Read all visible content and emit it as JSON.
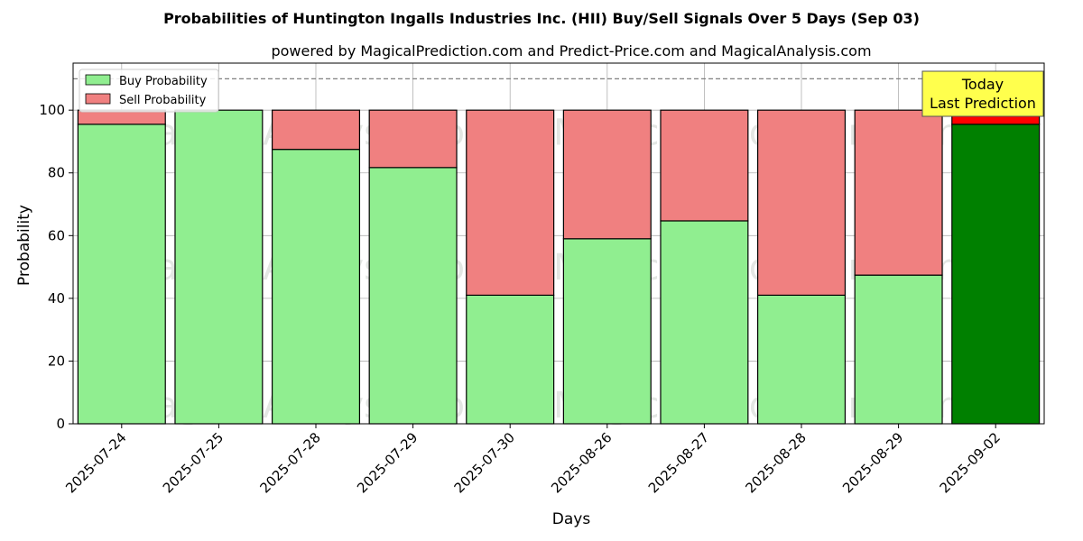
{
  "chart_data": {
    "type": "bar",
    "stacked": true,
    "title": "Probabilities of Huntington Ingalls Industries Inc. (HII) Buy/Sell Signals Over 5 Days (Sep 03)",
    "subtitle": "powered by MagicalPrediction.com and Predict-Price.com and MagicalAnalysis.com",
    "xlabel": "Days",
    "ylabel": "Probability",
    "ylim": [
      0,
      115
    ],
    "yticks": [
      0,
      20,
      40,
      60,
      80,
      100
    ],
    "grid": true,
    "legend_position": "top-left",
    "categories": [
      "2025-07-24",
      "2025-07-25",
      "2025-07-28",
      "2025-07-29",
      "2025-07-30",
      "2025-08-26",
      "2025-08-27",
      "2025-08-28",
      "2025-08-29",
      "2025-09-02"
    ],
    "series": [
      {
        "name": "Buy Probability",
        "values": [
          95.5,
          100,
          87.5,
          81.7,
          41.0,
          59.0,
          64.7,
          41.0,
          47.4,
          95.5
        ]
      },
      {
        "name": "Sell Probability",
        "values": [
          4.5,
          0,
          12.5,
          18.3,
          59.0,
          41.0,
          35.3,
          59.0,
          52.6,
          4.5
        ]
      }
    ],
    "colors": {
      "buy": "#90ee90",
      "sell": "#f08080",
      "buy_last": "#008000",
      "sell_last": "#ff0000",
      "reference_line": "#808080",
      "annotation_bg": "#ffff4d"
    },
    "reference_line": 110,
    "annotation": {
      "line1": "Today",
      "line2": "Last Prediction"
    },
    "watermarks": [
      "MagicalAnalysis.com",
      "MagicalPrediction.com"
    ]
  }
}
